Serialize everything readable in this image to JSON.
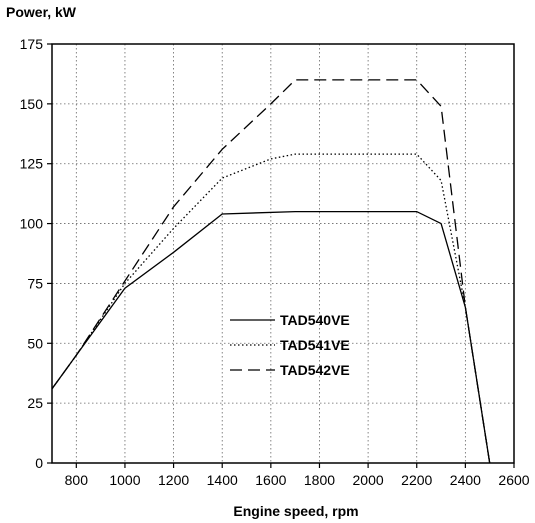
{
  "chart_data": {
    "type": "line",
    "ylabel": "Power, kW",
    "xlabel": "Engine speed, rpm",
    "xlim": [
      700,
      2600
    ],
    "ylim": [
      0,
      175
    ],
    "xticks": [
      800,
      1000,
      1200,
      1400,
      1600,
      1800,
      2000,
      2200,
      2400,
      2600
    ],
    "yticks": [
      0,
      25,
      50,
      75,
      100,
      125,
      150,
      175
    ],
    "grid": true,
    "legend_position": "center",
    "series": [
      {
        "name": "TAD540VE",
        "style": "solid",
        "points": [
          [
            700,
            31
          ],
          [
            800,
            45
          ],
          [
            1000,
            73
          ],
          [
            1200,
            88
          ],
          [
            1400,
            104
          ],
          [
            1700,
            105
          ],
          [
            2200,
            105
          ],
          [
            2300,
            100
          ],
          [
            2400,
            65
          ],
          [
            2500,
            0
          ]
        ]
      },
      {
        "name": "TAD541VE",
        "style": "dotted",
        "points": [
          [
            700,
            31
          ],
          [
            800,
            45
          ],
          [
            1000,
            75
          ],
          [
            1200,
            98
          ],
          [
            1400,
            119
          ],
          [
            1600,
            127
          ],
          [
            1700,
            129
          ],
          [
            2200,
            129
          ],
          [
            2300,
            118
          ],
          [
            2400,
            65
          ],
          [
            2500,
            0
          ]
        ]
      },
      {
        "name": "TAD542VE",
        "style": "dashed",
        "points": [
          [
            700,
            31
          ],
          [
            800,
            45
          ],
          [
            1000,
            76
          ],
          [
            1200,
            107
          ],
          [
            1400,
            131
          ],
          [
            1600,
            150
          ],
          [
            1700,
            160
          ],
          [
            2200,
            160
          ],
          [
            2300,
            149
          ],
          [
            2400,
            65
          ],
          [
            2500,
            0
          ]
        ]
      }
    ]
  }
}
